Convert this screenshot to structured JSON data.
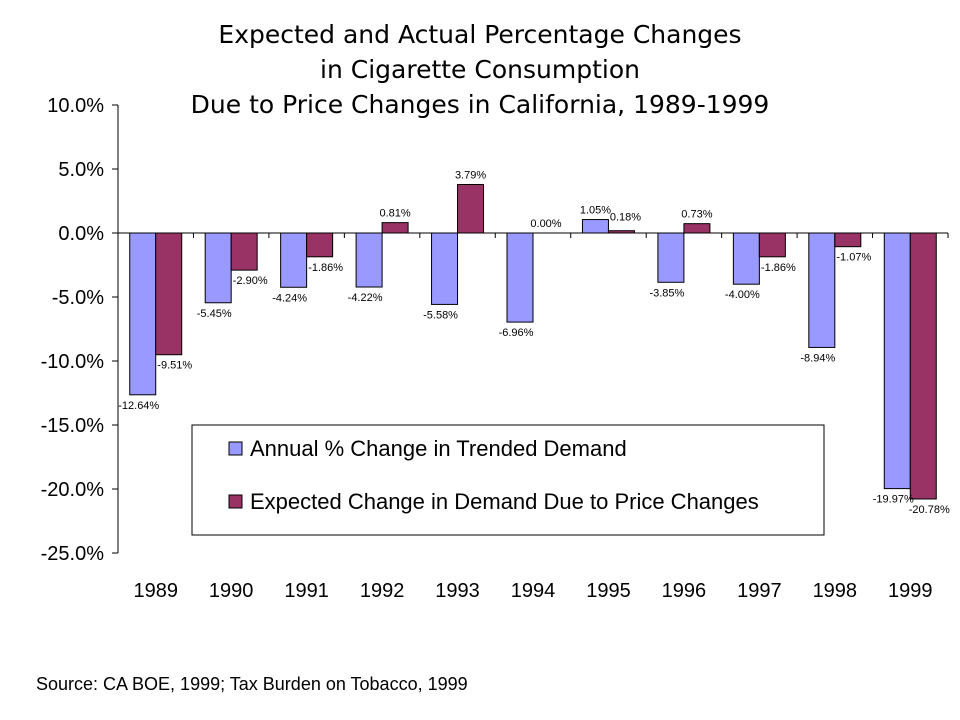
{
  "chart_data": {
    "type": "bar",
    "title": "Expected and Actual Percentage Changes\nin Cigarette Consumption\nDue to Price Changes in California, 1989-1999",
    "categories": [
      "1989",
      "1990",
      "1991",
      "1992",
      "1993",
      "1994",
      "1995",
      "1996",
      "1997",
      "1998",
      "1999"
    ],
    "series": [
      {
        "name": "Annual % Change in Trended Demand",
        "color": "#9999FF",
        "values": [
          -12.64,
          -5.45,
          -4.24,
          -4.22,
          -5.58,
          -6.96,
          1.05,
          -3.85,
          -4.0,
          -8.94,
          -19.97
        ],
        "labels": [
          "-12.64%",
          "-5.45%",
          "-4.24%",
          "-4.22%",
          "-5.58%",
          "-6.96%",
          "1.05%",
          "-3.85%",
          "-4.00%",
          "-8.94%",
          "-19.97%"
        ]
      },
      {
        "name": "Expected Change in Demand Due to Price Changes",
        "color": "#993366",
        "values": [
          -9.51,
          -2.9,
          -1.86,
          0.81,
          3.79,
          0.0,
          0.18,
          0.73,
          -1.86,
          -1.07,
          -20.78
        ],
        "labels": [
          "-9.51%",
          "-2.90%",
          "-1.86%",
          "0.81%",
          "3.79%",
          "0.00%",
          "0.18%",
          "0.73%",
          "-1.86%",
          "-1.07%",
          "-20.78%"
        ]
      }
    ],
    "ylim": [
      -25,
      10
    ],
    "yticks": [
      10,
      5,
      0,
      -5,
      -10,
      -15,
      -20,
      -25
    ],
    "ytick_labels": [
      "10.0%",
      "5.0%",
      "0.0%",
      "-5.0%",
      "-10.0%",
      "-15.0%",
      "-20.0%",
      "-25.0%"
    ],
    "legend_position": "lower-center",
    "grid": false
  },
  "source": "Source:  CA BOE, 1999; Tax Burden on Tobacco, 1999"
}
